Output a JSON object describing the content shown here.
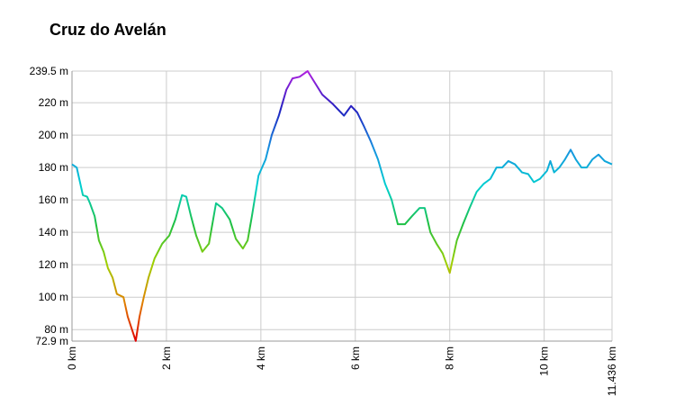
{
  "chart_data": {
    "type": "line",
    "title": "Cruz do Avelán",
    "x": [
      0,
      0.1,
      0.23,
      0.32,
      0.38,
      0.48,
      0.57,
      0.67,
      0.76,
      0.86,
      0.95,
      1.09,
      1.18,
      1.35,
      1.43,
      1.52,
      1.62,
      1.75,
      1.91,
      2.06,
      2.19,
      2.33,
      2.42,
      2.52,
      2.63,
      2.76,
      2.9,
      3.05,
      3.18,
      3.34,
      3.47,
      3.62,
      3.72,
      3.81,
      3.95,
      4.1,
      4.23,
      4.38,
      4.54,
      4.67,
      4.82,
      4.99,
      5.15,
      5.3,
      5.53,
      5.76,
      5.91,
      6.04,
      6.19,
      6.33,
      6.48,
      6.63,
      6.77,
      6.9,
      7.05,
      7.2,
      7.36,
      7.47,
      7.59,
      7.72,
      7.85,
      8.0,
      8.15,
      8.28,
      8.42,
      8.57,
      8.72,
      8.86,
      8.99,
      9.11,
      9.24,
      9.38,
      9.53,
      9.66,
      9.78,
      9.91,
      10.06,
      10.13,
      10.21,
      10.32,
      10.44,
      10.56,
      10.67,
      10.79,
      10.9,
      11.02,
      11.15,
      11.28,
      11.436
    ],
    "values": [
      182,
      180,
      163,
      162,
      158,
      150,
      135,
      128,
      118,
      112,
      102,
      100,
      88,
      73,
      88,
      100,
      112,
      124,
      133,
      138,
      148,
      163,
      162,
      150,
      138,
      128,
      133,
      158,
      155,
      148,
      136,
      130,
      135,
      150,
      175,
      185,
      200,
      212,
      228,
      235,
      236,
      239.5,
      232,
      225,
      219,
      212,
      218,
      214,
      205,
      196,
      185,
      170,
      160,
      145,
      145,
      150,
      155,
      155,
      140,
      133,
      127,
      115,
      135,
      145,
      155,
      165,
      170,
      173,
      180,
      180,
      184,
      182,
      177,
      176,
      171,
      173,
      178,
      184,
      177,
      180,
      185,
      191,
      185,
      180,
      180,
      185,
      188,
      184,
      182
    ],
    "colors": [
      "#b020e0",
      "#2020c0",
      "#1890e0",
      "#00d0d0",
      "#20c040",
      "#a0d000",
      "#e08000",
      "#e00000"
    ],
    "xlim": [
      0,
      11.436
    ],
    "xticks": [
      {
        "value": 0,
        "label": "0 km"
      },
      {
        "value": 2,
        "label": "2 km"
      },
      {
        "value": 4,
        "label": "4 km"
      },
      {
        "value": 6,
        "label": "6 km"
      },
      {
        "value": 8,
        "label": "8 km"
      },
      {
        "value": 10,
        "label": "10 km"
      },
      {
        "value": 11.436,
        "label": "11.436 km"
      }
    ],
    "ylim": [
      72.9,
      239.5
    ],
    "yticks": [
      {
        "value": 72.9,
        "label": "72.9 m"
      },
      {
        "value": 80,
        "label": "80 m"
      },
      {
        "value": 100,
        "label": "100 m"
      },
      {
        "value": 120,
        "label": "120 m"
      },
      {
        "value": 140,
        "label": "140 m"
      },
      {
        "value": 160,
        "label": "160 m"
      },
      {
        "value": 180,
        "label": "180 m"
      },
      {
        "value": 200,
        "label": "200 m"
      },
      {
        "value": 220,
        "label": "220 m"
      },
      {
        "value": 239.5,
        "label": "239.5 m"
      }
    ],
    "grid": true
  }
}
